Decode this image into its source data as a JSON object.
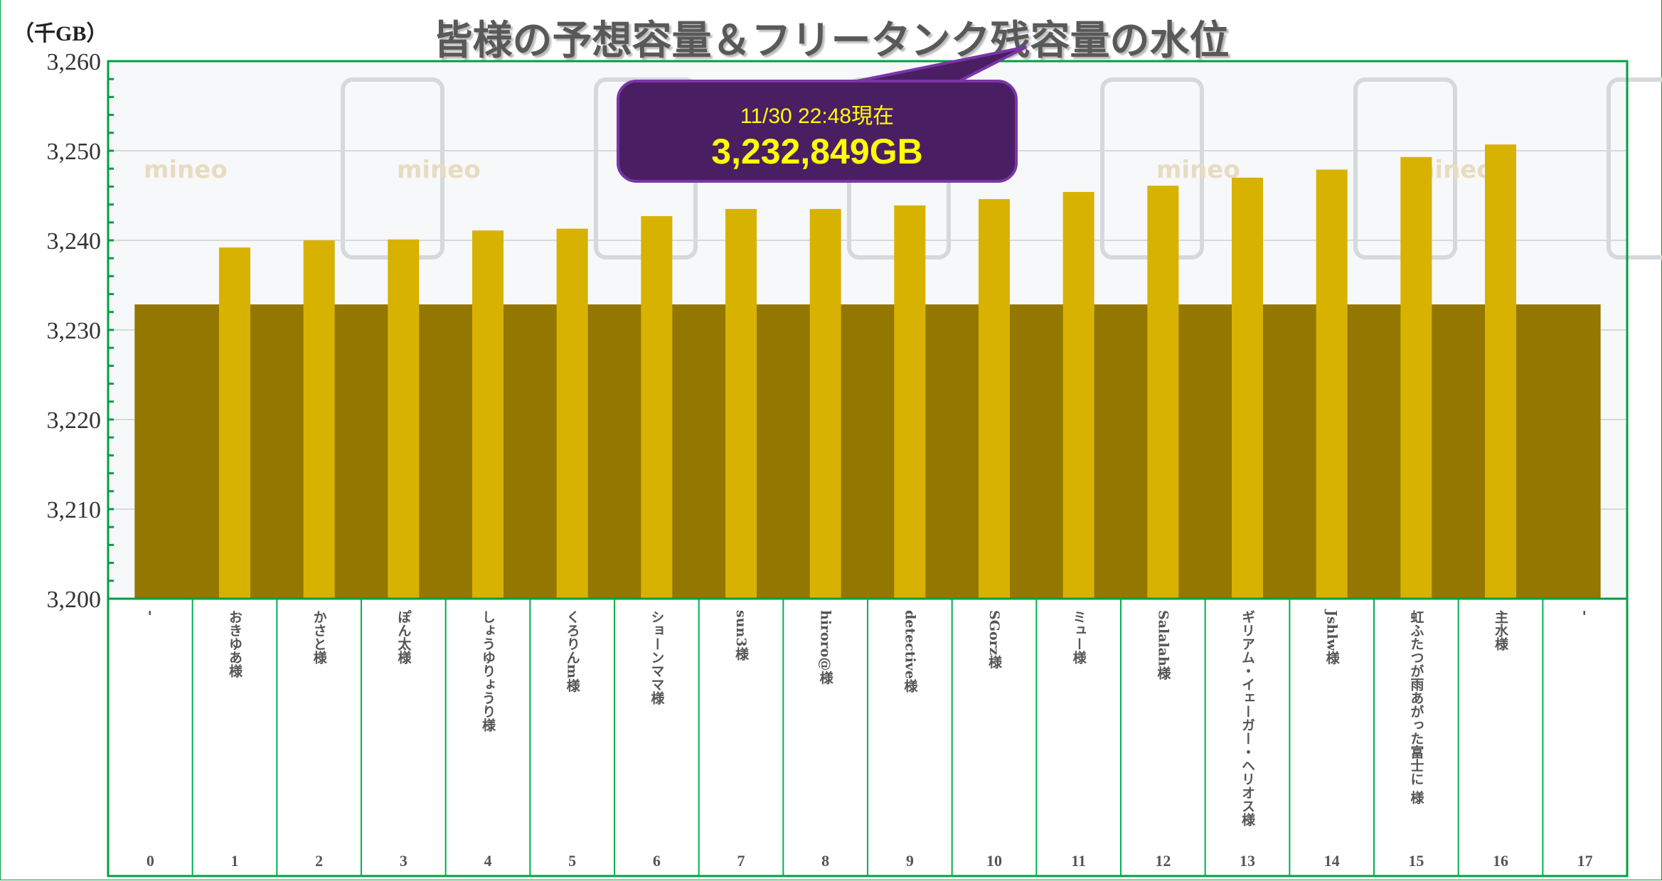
{
  "chart_data": {
    "type": "bar",
    "title": "皆様の予想容量＆フリータンク残容量の水位",
    "ylabel": "（千GB）",
    "ylim": [
      3200,
      3260
    ],
    "yticks": [
      "3,200",
      "3,210",
      "3,220",
      "3,230",
      "3,240",
      "3,250",
      "3,260"
    ],
    "ytick_values": [
      3200,
      3210,
      3220,
      3230,
      3240,
      3250,
      3260
    ],
    "grid": true,
    "categories": [
      "-",
      "おきゆあ様",
      "かさと様",
      "ぽん太様",
      "しょうゆりょうり様",
      "くろりんm様",
      "ショーンママ様",
      "sun3様",
      "hiroro@様",
      "detective様",
      "SGorz様",
      "ミュー様",
      "Salalah様",
      "ギリアム・イェーガー・ヘリオス様",
      "Jshlw様",
      "虹ふたつが雨あがった富士に 様",
      "主水様",
      "-"
    ],
    "indices": [
      "0",
      "1",
      "2",
      "3",
      "4",
      "5",
      "6",
      "7",
      "8",
      "9",
      "10",
      "11",
      "12",
      "13",
      "14",
      "15",
      "16",
      "17"
    ],
    "series": [
      {
        "name": "予想容量",
        "color": "#D8B200",
        "values": [
          3200.1,
          3239.2,
          3240.0,
          3240.1,
          3241.1,
          3241.3,
          3242.7,
          3243.5,
          3243.5,
          3243.9,
          3244.6,
          3245.4,
          3246.1,
          3247.0,
          3247.9,
          3249.3,
          3250.7,
          3200.1
        ]
      },
      {
        "name": "フリータンク残容量",
        "color": "#937700",
        "value": 3232.849,
        "span": [
          0,
          17
        ]
      }
    ],
    "annotation": {
      "date": "11/30 22:48現在",
      "value": "3,232,849GB"
    }
  }
}
